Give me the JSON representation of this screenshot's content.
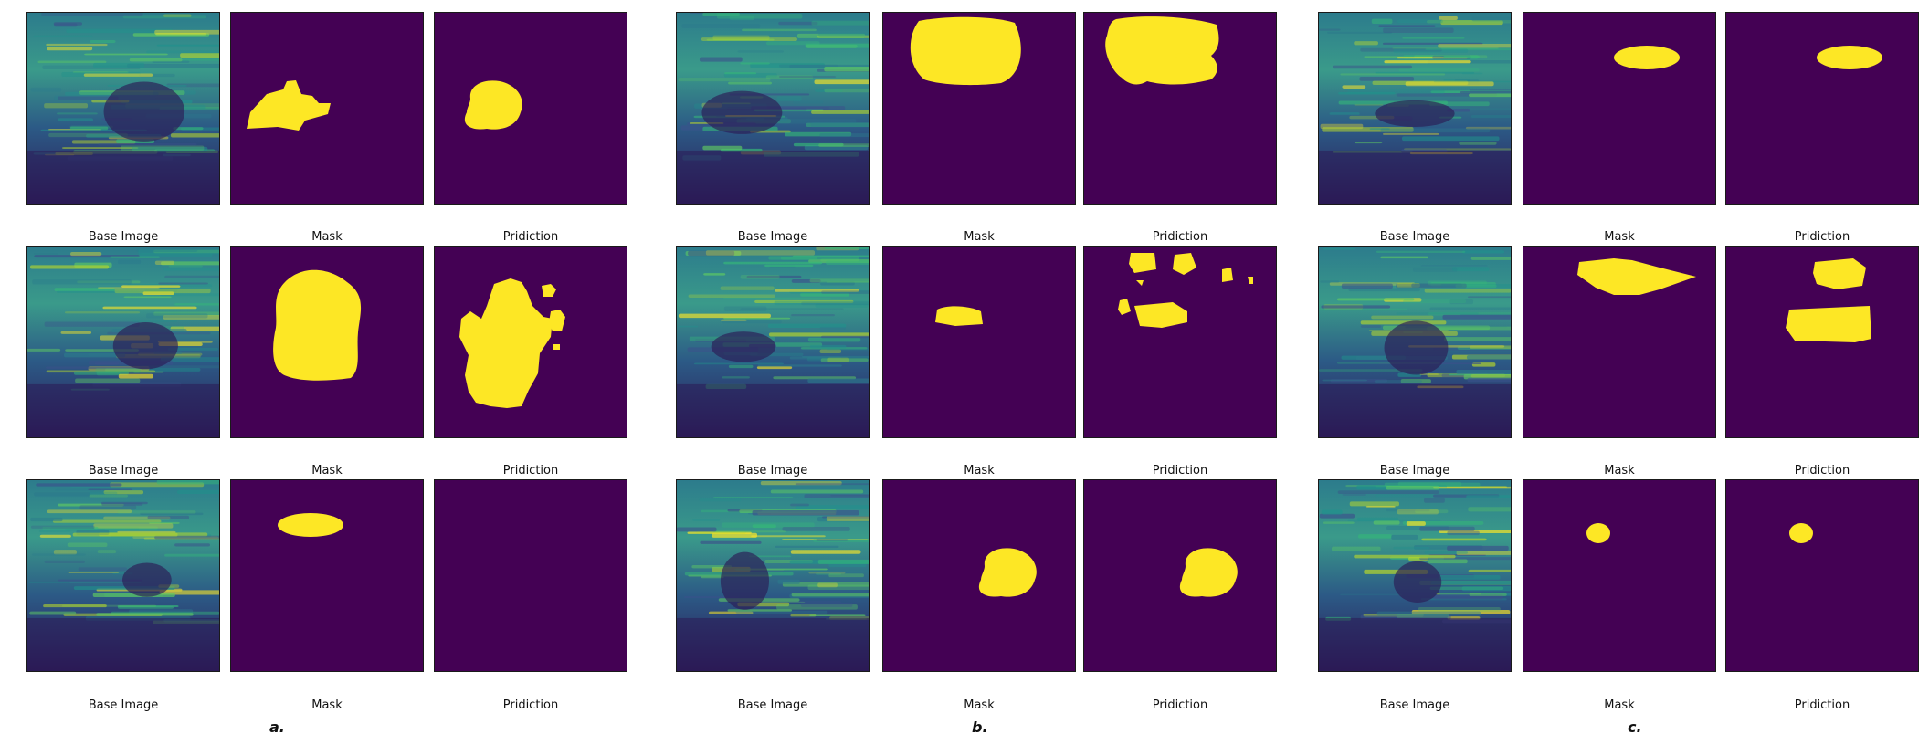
{
  "colors": {
    "background": "#440154",
    "foreground": "#fde725",
    "us_dark": "#2c1a56",
    "us_mid": "#2c7b8c",
    "us_bright": "#b6d62c"
  },
  "groups": [
    {
      "label": "a.",
      "rows": [
        {
          "captions": [
            "Base Image",
            "Mask",
            "Pridiction"
          ],
          "mask_shape": "irregular-blob",
          "prediction_shape": "blob"
        },
        {
          "captions": [
            "Base Image",
            "Mask",
            "Pridiction"
          ],
          "mask_shape": "large-blob",
          "prediction_shape": "large-irregular-blob"
        },
        {
          "captions": [
            "Base Image",
            "Mask",
            "Pridiction"
          ],
          "mask_shape": "ellipse",
          "prediction_shape": "empty"
        }
      ]
    },
    {
      "label": "b.",
      "rows": [
        {
          "captions": [
            "Base Image",
            "Mask",
            "Pridiction"
          ],
          "mask_shape": "large-rounded",
          "prediction_shape": "large-rounded-with-hole"
        },
        {
          "captions": [
            "Base Image",
            "Mask",
            "Pridiction"
          ],
          "mask_shape": "small-ellipse",
          "prediction_shape": "scattered-blobs"
        },
        {
          "captions": [
            "Base Image",
            "Mask",
            "Pridiction"
          ],
          "mask_shape": "blob",
          "prediction_shape": "blob"
        }
      ]
    },
    {
      "label": "c.",
      "rows": [
        {
          "captions": [
            "Base Image",
            "Mask",
            "Pridiction"
          ],
          "mask_shape": "ellipse",
          "prediction_shape": "ellipse"
        },
        {
          "captions": [
            "Base Image",
            "Mask",
            "Pridiction"
          ],
          "mask_shape": "elongated-blob",
          "prediction_shape": "two-blobs"
        },
        {
          "captions": [
            "Base Image",
            "Mask",
            "Pridiction"
          ],
          "mask_shape": "small-circle",
          "prediction_shape": "small-circle"
        }
      ]
    }
  ]
}
